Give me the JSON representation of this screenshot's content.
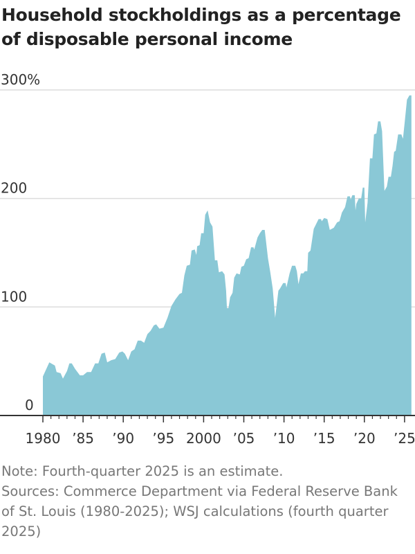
{
  "chart_data": {
    "type": "area",
    "title": "Household stockholdings as a percentage of disposable personal income",
    "xlabel": "",
    "ylabel": "",
    "ylim": [
      0,
      300
    ],
    "xlim": [
      1980,
      2025.85
    ],
    "grid": true,
    "y_ticks": [
      {
        "value": 0,
        "label": "0"
      },
      {
        "value": 100,
        "label": "100"
      },
      {
        "value": 200,
        "label": "200"
      },
      {
        "value": 300,
        "label": "300%"
      }
    ],
    "x_ticks": [
      {
        "value": 1980,
        "label": "1980"
      },
      {
        "value": 1985,
        "label": "’85"
      },
      {
        "value": 1990,
        "label": "’90"
      },
      {
        "value": 1995,
        "label": "’95"
      },
      {
        "value": 2000,
        "label": "2000"
      },
      {
        "value": 2005,
        "label": "’05"
      },
      {
        "value": 2010,
        "label": "’10"
      },
      {
        "value": 2015,
        "label": "’15"
      },
      {
        "value": 2020,
        "label": "’20"
      },
      {
        "value": 2025,
        "label": "’25"
      }
    ],
    "color": "#8AC8D6",
    "series": [
      {
        "name": "Household stockholdings % of disposable personal income",
        "points": [
          [
            1980.0,
            36
          ],
          [
            1980.8,
            49
          ],
          [
            1981.5,
            46
          ],
          [
            1981.7,
            40
          ],
          [
            1982.2,
            39
          ],
          [
            1982.5,
            34
          ],
          [
            1983.0,
            41
          ],
          [
            1983.3,
            48
          ],
          [
            1983.6,
            48
          ],
          [
            1984.0,
            43
          ],
          [
            1984.6,
            37
          ],
          [
            1985.0,
            37
          ],
          [
            1985.5,
            40
          ],
          [
            1986.0,
            40
          ],
          [
            1986.5,
            48
          ],
          [
            1986.9,
            48
          ],
          [
            1987.3,
            57
          ],
          [
            1987.7,
            58
          ],
          [
            1988.0,
            49
          ],
          [
            1988.5,
            51
          ],
          [
            1989.0,
            52
          ],
          [
            1989.5,
            58
          ],
          [
            1989.9,
            59
          ],
          [
            1990.2,
            57
          ],
          [
            1990.6,
            51
          ],
          [
            1991.0,
            59
          ],
          [
            1991.4,
            61
          ],
          [
            1991.8,
            69
          ],
          [
            1992.2,
            69
          ],
          [
            1992.6,
            67
          ],
          [
            1993.0,
            75
          ],
          [
            1993.4,
            78
          ],
          [
            1993.8,
            83
          ],
          [
            1994.1,
            84
          ],
          [
            1994.5,
            80
          ],
          [
            1995.0,
            81
          ],
          [
            1995.5,
            90
          ],
          [
            1996.0,
            101
          ],
          [
            1996.5,
            107
          ],
          [
            1997.0,
            112
          ],
          [
            1997.3,
            113
          ],
          [
            1997.6,
            129
          ],
          [
            1997.9,
            138
          ],
          [
            1998.3,
            139
          ],
          [
            1998.5,
            152
          ],
          [
            1998.9,
            153
          ],
          [
            1999.1,
            148
          ],
          [
            1999.2,
            156
          ],
          [
            1999.5,
            157
          ],
          [
            1999.7,
            168
          ],
          [
            2000.0,
            168
          ],
          [
            2000.2,
            185
          ],
          [
            2000.5,
            189
          ],
          [
            2000.8,
            178
          ],
          [
            2001.1,
            174
          ],
          [
            2001.4,
            143
          ],
          [
            2001.7,
            143
          ],
          [
            2001.9,
            132
          ],
          [
            2002.3,
            133
          ],
          [
            2002.6,
            130
          ],
          [
            2002.8,
            115
          ],
          [
            2002.9,
            99
          ],
          [
            2003.1,
            99
          ],
          [
            2003.3,
            109
          ],
          [
            2003.6,
            113
          ],
          [
            2003.8,
            127
          ],
          [
            2004.1,
            131
          ],
          [
            2004.5,
            130
          ],
          [
            2004.7,
            137
          ],
          [
            2005.0,
            138
          ],
          [
            2005.3,
            144
          ],
          [
            2005.6,
            145
          ],
          [
            2005.9,
            155
          ],
          [
            2006.2,
            155
          ],
          [
            2006.3,
            153
          ],
          [
            2006.7,
            164
          ],
          [
            2007.0,
            168
          ],
          [
            2007.3,
            171
          ],
          [
            2007.6,
            171
          ],
          [
            2008.0,
            145
          ],
          [
            2008.3,
            132
          ],
          [
            2008.6,
            117
          ],
          [
            2008.9,
            90
          ],
          [
            2009.3,
            115
          ],
          [
            2009.5,
            117
          ],
          [
            2009.9,
            122
          ],
          [
            2010.2,
            122
          ],
          [
            2010.3,
            118
          ],
          [
            2010.7,
            131
          ],
          [
            2011.0,
            138
          ],
          [
            2011.4,
            138
          ],
          [
            2011.6,
            133
          ],
          [
            2011.8,
            121
          ],
          [
            2012.1,
            131
          ],
          [
            2012.4,
            131
          ],
          [
            2012.6,
            133
          ],
          [
            2012.9,
            133
          ],
          [
            2013.0,
            150
          ],
          [
            2013.3,
            152
          ],
          [
            2013.7,
            172
          ],
          [
            2014.3,
            181
          ],
          [
            2014.6,
            181
          ],
          [
            2014.7,
            179
          ],
          [
            2015.0,
            182
          ],
          [
            2015.4,
            181
          ],
          [
            2015.7,
            171
          ],
          [
            2016.2,
            173
          ],
          [
            2016.6,
            178
          ],
          [
            2016.9,
            179
          ],
          [
            2017.2,
            187
          ],
          [
            2017.6,
            192
          ],
          [
            2017.9,
            202
          ],
          [
            2018.2,
            202
          ],
          [
            2018.3,
            199
          ],
          [
            2018.5,
            203
          ],
          [
            2018.8,
            203
          ],
          [
            2018.9,
            189
          ],
          [
            2019.0,
            195
          ],
          [
            2019.3,
            200
          ],
          [
            2019.6,
            200
          ],
          [
            2019.8,
            210
          ],
          [
            2020.0,
            210
          ],
          [
            2020.1,
            178
          ],
          [
            2020.4,
            196
          ],
          [
            2020.7,
            237
          ],
          [
            2021.0,
            237
          ],
          [
            2021.2,
            259
          ],
          [
            2021.5,
            260
          ],
          [
            2021.7,
            271
          ],
          [
            2022.0,
            271
          ],
          [
            2022.2,
            262
          ],
          [
            2022.5,
            207
          ],
          [
            2022.8,
            211
          ],
          [
            2023.0,
            220
          ],
          [
            2023.3,
            220
          ],
          [
            2023.5,
            230
          ],
          [
            2023.7,
            243
          ],
          [
            2023.9,
            244
          ],
          [
            2024.2,
            259
          ],
          [
            2024.6,
            259
          ],
          [
            2024.8,
            255
          ],
          [
            2025.0,
            269
          ],
          [
            2025.3,
            291
          ],
          [
            2025.6,
            295
          ],
          [
            2025.85,
            295
          ]
        ]
      }
    ],
    "notes": [
      "Note: Fourth-quarter 2025 is an estimate.",
      "Sources: Commerce Department via Federal Reserve Bank of St. Louis (1980-2025); WSJ calculations (fourth quarter 2025)"
    ]
  }
}
